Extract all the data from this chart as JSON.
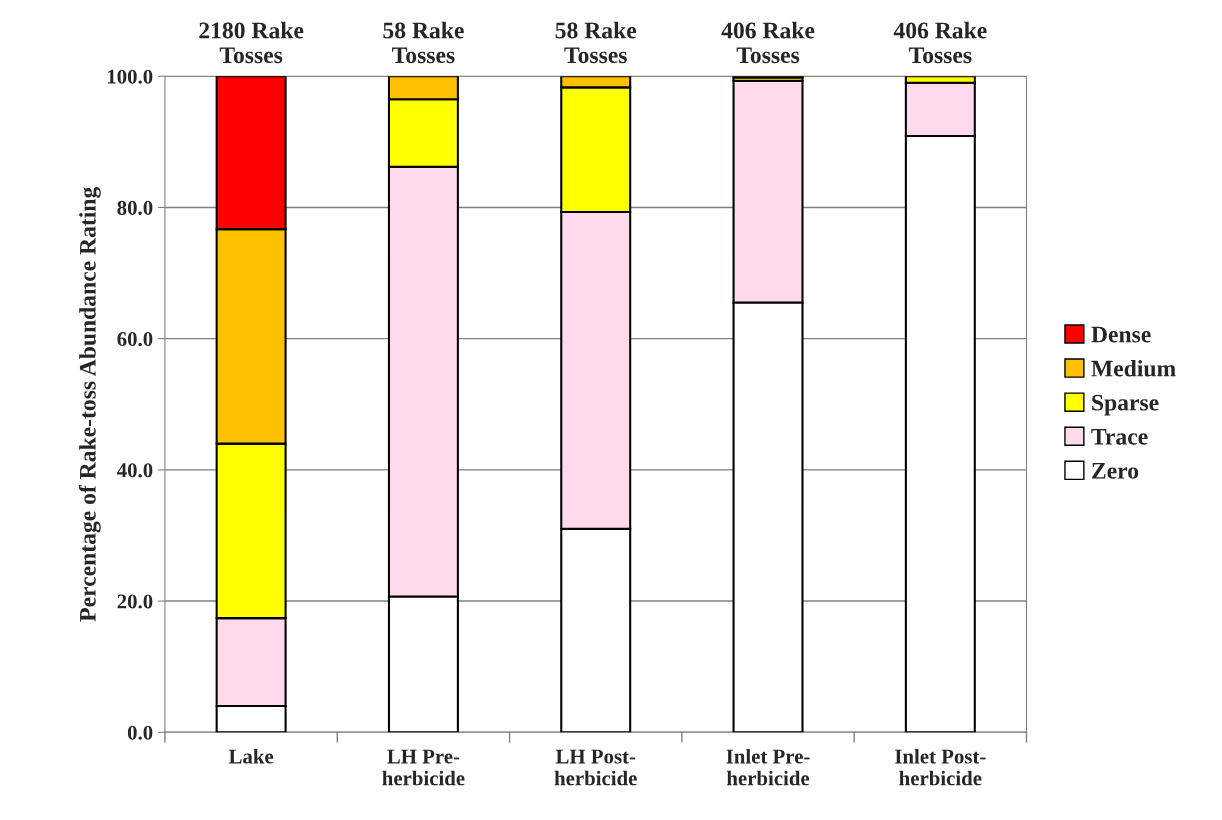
{
  "chart_data": {
    "type": "bar",
    "stacked": true,
    "ylabel": "Percentage of Rake-toss Abundance Rating",
    "categories": [
      "Lake",
      "LH Pre-\nherbicide",
      "LH Post-\nherbicide",
      "Inlet Pre-\nherbicide",
      "Inlet Post-\nherbicide"
    ],
    "series": [
      {
        "name": "Zero",
        "color": "#ffffff",
        "values": [
          4.0,
          20.7,
          31.0,
          65.5,
          90.9
        ]
      },
      {
        "name": "Trace",
        "color": "#ffd9ec",
        "values": [
          13.4,
          65.5,
          48.3,
          33.8,
          8.1
        ]
      },
      {
        "name": "Sparse",
        "color": "#ffff00",
        "values": [
          26.6,
          10.3,
          19.0,
          0.5,
          1.0
        ]
      },
      {
        "name": "Medium",
        "color": "#ffc000",
        "values": [
          32.7,
          3.5,
          1.7,
          0.2,
          null
        ]
      },
      {
        "name": "Dense",
        "color": "#ff0000",
        "values": [
          23.3,
          null,
          null,
          null,
          null
        ]
      }
    ],
    "ylim": [
      0,
      100
    ],
    "yticks": [
      {
        "value": 0,
        "label": "0.0"
      },
      {
        "value": 20,
        "label": "20.0"
      },
      {
        "value": 40,
        "label": "40.0"
      },
      {
        "value": 60,
        "label": "60.0"
      },
      {
        "value": 80,
        "label": "80.0"
      },
      {
        "value": 100,
        "label": "100.0"
      }
    ],
    "grid": "y",
    "legend": "right",
    "annotations": [
      {
        "text": "2180 Rake\nTosses",
        "x": "Lake",
        "y": 100
      },
      {
        "text": "58 Rake\nTosses",
        "x": "LH Pre-\nherbicide",
        "y": 100
      },
      {
        "text": "58 Rake\nTosses",
        "x": "LH Post-\nherbicide",
        "y": 100
      },
      {
        "text": "406 Rake\nTosses",
        "x": "Inlet Pre-\nherbicide",
        "y": 100
      },
      {
        "text": "406 Rake\nTosses",
        "x": "Inlet Post-\nherbicide",
        "y": 100
      }
    ]
  }
}
